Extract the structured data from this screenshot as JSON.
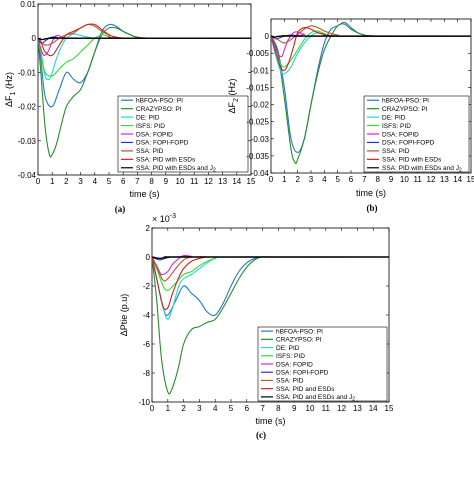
{
  "chart_data": [
    {
      "type": "line",
      "panel": "(a)",
      "caption": "(a)",
      "xlabel": "time (s)",
      "ylabel": "ΔF",
      "ylabel_sub": "1",
      "ylabel_unit": "(Hz)",
      "xlim": [
        0,
        15
      ],
      "ylim": [
        -0.04,
        0.01
      ],
      "xticks": [
        0,
        1,
        2,
        3,
        4,
        5,
        6,
        7,
        8,
        9,
        10,
        11,
        12,
        13,
        14,
        15
      ],
      "yticks": [
        0.01,
        0,
        -0.01,
        -0.02,
        -0.03,
        -0.04
      ],
      "ytick_labels": [
        "0.01",
        "0",
        "-0.01",
        "-0.02",
        "-0.03",
        "-0.04"
      ],
      "legend": [
        "hBFOA-PSO: PI",
        "CRAZYPSO: PI",
        "DE: PID",
        "ISFS: PID",
        "DSA: FOPID",
        "DSA: FOPI-FOPD",
        "SSA: PID",
        "SSA: PID with ESDs",
        "SSA: PID with ESDs and J2"
      ],
      "series": [
        {
          "color": "#1f77d4",
          "x": [
            0,
            0.2,
            0.5,
            1,
            1.5,
            2,
            2.5,
            3,
            3.5,
            4,
            4.5,
            5,
            5.5,
            6,
            6.5,
            7,
            8,
            9,
            15
          ],
          "y": [
            0,
            -0.006,
            -0.017,
            -0.02,
            -0.015,
            -0.01,
            -0.012,
            -0.013,
            -0.01,
            -0.004,
            0.002,
            0.004,
            0.0035,
            0.002,
            0.001,
            0.0003,
            0,
            0,
            0
          ]
        },
        {
          "color": "#2a8a2a",
          "x": [
            0,
            0.2,
            0.5,
            0.8,
            1,
            1.3,
            1.6,
            2,
            2.5,
            3,
            3.5,
            4,
            4.5,
            5,
            5.5,
            6,
            6.5,
            7,
            8,
            15
          ],
          "y": [
            0,
            -0.01,
            -0.026,
            -0.034,
            -0.034,
            -0.031,
            -0.026,
            -0.02,
            -0.017,
            -0.015,
            -0.01,
            -0.004,
            0.001,
            0.003,
            0.003,
            0.002,
            0.001,
            0.0003,
            0,
            0
          ]
        },
        {
          "color": "#25d7d7",
          "x": [
            0,
            0.2,
            0.5,
            0.8,
            1,
            1.3,
            1.7,
            2,
            2.5,
            3,
            3.5,
            4,
            5,
            15
          ],
          "y": [
            0,
            -0.004,
            -0.011,
            -0.012,
            -0.01,
            -0.006,
            -0.002,
            0,
            0.0012,
            0.0008,
            0.0003,
            0,
            0,
            0
          ]
        },
        {
          "color": "#33dd33",
          "x": [
            0,
            0.2,
            0.5,
            1,
            1.5,
            2,
            2.5,
            3,
            3.5,
            4,
            4.5,
            5,
            6,
            15
          ],
          "y": [
            0,
            -0.004,
            -0.01,
            -0.011,
            -0.009,
            -0.007,
            -0.006,
            -0.004,
            -0.002,
            0,
            0.001,
            0.0005,
            0,
            0
          ]
        },
        {
          "color": "#dd22dd",
          "x": [
            0,
            0.2,
            0.4,
            0.7,
            1,
            1.3,
            1.6,
            2,
            2.5,
            3,
            3.5,
            4,
            15
          ],
          "y": [
            0,
            -0.003,
            -0.005,
            -0.004,
            -0.001,
            0.0008,
            0.0005,
            0,
            0,
            0,
            0,
            0,
            0
          ]
        },
        {
          "color": "#2a2add",
          "x": [
            0,
            0.15,
            0.3,
            0.5,
            0.8,
            1.1,
            1.5,
            2,
            3,
            15
          ],
          "y": [
            0,
            -0.0012,
            -0.0015,
            -0.0008,
            0,
            0.0004,
            0.0001,
            0,
            0,
            0
          ]
        },
        {
          "color": "#b05a2a",
          "x": [
            0,
            0.2,
            0.5,
            1,
            1.5,
            2,
            2.5,
            3,
            3.5,
            4,
            4.5,
            5,
            6,
            15
          ],
          "y": [
            0,
            -0.001,
            -0.002,
            -0.0015,
            0,
            0.001,
            0.0015,
            0.003,
            0.004,
            0.0035,
            0.002,
            0.001,
            0,
            0
          ]
        },
        {
          "color": "#cc2222",
          "x": [
            0,
            0.2,
            0.5,
            1,
            1.5,
            2,
            2.5,
            3,
            3.5,
            4,
            4.5,
            5,
            5.5,
            6,
            7,
            15
          ],
          "y": [
            0,
            -0.001,
            -0.004,
            -0.005,
            -0.002,
            0.001,
            0.002,
            0.003,
            0.004,
            0.004,
            0.0025,
            0.001,
            0.0003,
            0,
            0,
            0
          ]
        },
        {
          "color": "#000000",
          "x": [
            0,
            0.15,
            0.3,
            0.5,
            0.8,
            1.2,
            2,
            15
          ],
          "y": [
            0,
            -0.0003,
            -0.0004,
            -0.0002,
            0,
            0.0001,
            0,
            0
          ]
        }
      ]
    },
    {
      "type": "line",
      "panel": "(b)",
      "caption": "(b)",
      "xlabel": "time (s)",
      "ylabel": "ΔF",
      "ylabel_sub": "2",
      "ylabel_unit": "(Hz)",
      "xlim": [
        0,
        15
      ],
      "ylim": [
        -0.04,
        0.005
      ],
      "xticks": [
        0,
        1,
        2,
        3,
        4,
        5,
        6,
        7,
        8,
        9,
        10,
        11,
        12,
        13,
        14,
        15
      ],
      "yticks": [
        0,
        -0.005,
        -0.01,
        -0.015,
        -0.02,
        -0.025,
        -0.03,
        -0.035,
        -0.04
      ],
      "ytick_labels": [
        "0",
        "-0.005",
        "-0.01",
        "-0.015",
        "-0.02",
        "-0.025",
        "-0.03",
        "-0.035",
        "-0.04"
      ],
      "legend": [
        "hBFOA-PSO: PI",
        "CRAZYPSO: PI",
        "DE: PID",
        "ISFS: PID",
        "DSA: FOPID",
        "DSA: FOPI-FOPD",
        "SSA: PID",
        "SSA: PID with ESDs",
        "SSA: PID with ESDs and J2"
      ],
      "series": [
        {
          "color": "#1f77d4",
          "x": [
            0,
            0.5,
            1,
            1.5,
            2,
            2.5,
            3,
            3.5,
            4,
            4.5,
            5,
            5.5,
            6,
            6.5,
            7,
            8,
            9,
            15
          ],
          "y": [
            0,
            -0.004,
            -0.015,
            -0.03,
            -0.034,
            -0.03,
            -0.02,
            -0.01,
            -0.002,
            0.002,
            0.003,
            0.004,
            0.0025,
            0.001,
            0.0003,
            0,
            0,
            0
          ]
        },
        {
          "color": "#2a8a2a",
          "x": [
            0,
            0.5,
            1,
            1.5,
            1.8,
            2,
            2.5,
            3,
            3.5,
            4,
            4.5,
            5,
            5.5,
            6,
            6.5,
            7,
            8,
            15
          ],
          "y": [
            0,
            -0.005,
            -0.018,
            -0.033,
            -0.037,
            -0.036,
            -0.03,
            -0.02,
            -0.011,
            -0.004,
            0,
            0.003,
            0.0035,
            0.002,
            0.001,
            0.0003,
            0,
            0
          ]
        },
        {
          "color": "#25d7d7",
          "x": [
            0,
            0.3,
            0.7,
            1,
            1.5,
            2,
            2.5,
            3,
            3.5,
            4,
            5,
            15
          ],
          "y": [
            0,
            -0.005,
            -0.01,
            -0.011,
            -0.009,
            -0.005,
            -0.002,
            0,
            0.001,
            0.0005,
            0,
            0
          ]
        },
        {
          "color": "#33dd33",
          "x": [
            0,
            0.3,
            0.7,
            1,
            1.5,
            2,
            2.5,
            3,
            3.5,
            4,
            5,
            15
          ],
          "y": [
            0,
            -0.004,
            -0.008,
            -0.009,
            -0.007,
            -0.004,
            -0.001,
            0.001,
            0.0015,
            0.0008,
            0,
            0
          ]
        },
        {
          "color": "#dd22dd",
          "x": [
            0,
            0.2,
            0.5,
            0.8,
            1,
            1.3,
            1.7,
            2,
            2.5,
            3,
            15
          ],
          "y": [
            0,
            -0.002,
            -0.005,
            -0.006,
            -0.004,
            -0.001,
            0.001,
            0.0012,
            0.0005,
            0,
            0
          ]
        },
        {
          "color": "#2a2add",
          "x": [
            0,
            0.2,
            0.4,
            0.7,
            1,
            1.5,
            2,
            3,
            15
          ],
          "y": [
            0,
            -0.0005,
            -0.0008,
            -0.0004,
            0,
            0.0003,
            0.0001,
            0,
            0
          ]
        },
        {
          "color": "#b05a2a",
          "x": [
            0,
            0.5,
            1,
            1.5,
            2,
            2.5,
            3,
            3.5,
            4,
            4.5,
            5,
            6,
            15
          ],
          "y": [
            0,
            -0.001,
            -0.002,
            -0.001,
            0.0005,
            0.002,
            0.003,
            0.0025,
            0.0015,
            0.0008,
            0.0003,
            0,
            0
          ]
        },
        {
          "color": "#cc2222",
          "x": [
            0,
            0.3,
            0.7,
            1,
            1.3,
            1.7,
            2,
            2.5,
            3,
            3.5,
            4,
            4.5,
            5,
            6,
            15
          ],
          "y": [
            0,
            -0.004,
            -0.009,
            -0.01,
            -0.008,
            -0.003,
            0.001,
            0.0025,
            0.002,
            0.001,
            0.0005,
            0.0002,
            0,
            0,
            0
          ]
        },
        {
          "color": "#000000",
          "x": [
            0,
            0.15,
            0.3,
            0.5,
            0.8,
            1.2,
            2,
            15
          ],
          "y": [
            0,
            -0.0002,
            -0.0003,
            -0.0001,
            0,
            0.0001,
            0,
            0
          ]
        }
      ]
    },
    {
      "type": "line",
      "panel": "(c)",
      "caption": "(c)",
      "xlabel": "time (s)",
      "ylabel": "ΔPtie (p.u)",
      "exponent_label": "× 10",
      "exponent_power": "-3",
      "xlim": [
        0,
        15
      ],
      "ylim": [
        -10,
        2
      ],
      "xticks": [
        0,
        1,
        2,
        3,
        4,
        5,
        6,
        7,
        8,
        9,
        10,
        11,
        12,
        13,
        14,
        15
      ],
      "yticks": [
        2,
        0,
        -2,
        -4,
        -6,
        -8,
        -10
      ],
      "ytick_labels": [
        "2",
        "0",
        "-2",
        "-4",
        "-6",
        "-8",
        "-10"
      ],
      "legend": [
        "hBFOA-PSO: PI",
        "CRAZYPSO: PI",
        "DE: PID",
        "ISFS: PID",
        "DSA: FOPID",
        "DSA: FOPI-FOPD",
        "SSA: PID",
        "SSA: PID and ESDs",
        "SSA: PID and ESDs and J2"
      ],
      "series": [
        {
          "color": "#1f77d4",
          "x": [
            0,
            0.3,
            0.7,
            1,
            1.5,
            2,
            2.5,
            3,
            3.5,
            4,
            4.5,
            5,
            5.5,
            6,
            6.5,
            7,
            8,
            15
          ],
          "y": [
            0,
            -1.5,
            -3.5,
            -4,
            -3,
            -2,
            -2.5,
            -3,
            -3.8,
            -4,
            -3.2,
            -2,
            -1,
            -0.4,
            -0.1,
            0,
            0,
            0
          ]
        },
        {
          "color": "#2a8a2a",
          "x": [
            0,
            0.3,
            0.6,
            1,
            1.3,
            1.7,
            2,
            2.5,
            3,
            3.5,
            4,
            4.5,
            5,
            5.5,
            6,
            6.5,
            7,
            8,
            15
          ],
          "y": [
            0,
            -3,
            -7,
            -9.3,
            -9,
            -7.5,
            -6,
            -5,
            -4.8,
            -4.5,
            -4.3,
            -3.5,
            -2.5,
            -1.5,
            -0.7,
            -0.2,
            0,
            0,
            0
          ]
        },
        {
          "color": "#25d7d7",
          "x": [
            0,
            0.3,
            0.7,
            1,
            1.3,
            1.7,
            2,
            2.5,
            3,
            3.5,
            4,
            5,
            15
          ],
          "y": [
            0,
            -1.5,
            -3.5,
            -4.3,
            -3.5,
            -2,
            -1.5,
            -1.2,
            -0.8,
            -0.4,
            -0.1,
            0,
            0
          ]
        },
        {
          "color": "#33dd33",
          "x": [
            0,
            0.3,
            0.7,
            1,
            1.5,
            2,
            2.5,
            3,
            3.5,
            4,
            5,
            15
          ],
          "y": [
            0,
            -0.8,
            -2,
            -2.3,
            -1.8,
            -1.2,
            -1,
            -0.6,
            -0.3,
            -0.1,
            0,
            0
          ]
        },
        {
          "color": "#dd22dd",
          "x": [
            0,
            0.3,
            0.6,
            1,
            1.3,
            1.7,
            2,
            2.5,
            3,
            15
          ],
          "y": [
            0,
            -0.6,
            -1.2,
            -1,
            -0.5,
            -0.1,
            0.1,
            0.05,
            0,
            0
          ]
        },
        {
          "color": "#2a2add",
          "x": [
            0,
            0.2,
            0.5,
            0.8,
            1.2,
            2,
            3,
            15
          ],
          "y": [
            0,
            -0.1,
            -0.2,
            -0.1,
            0,
            0,
            0,
            0
          ]
        },
        {
          "color": "#b05a2a",
          "x": [
            0,
            0.3,
            0.7,
            1,
            1.5,
            2,
            2.5,
            3,
            15
          ],
          "y": [
            0,
            -0.7,
            -1.6,
            -1.5,
            -0.8,
            -0.2,
            0,
            0,
            0
          ]
        },
        {
          "color": "#cc2222",
          "x": [
            0,
            0.3,
            0.7,
            1,
            1.3,
            1.7,
            2,
            2.5,
            3,
            3.5,
            4,
            15
          ],
          "y": [
            0,
            -1.5,
            -3.4,
            -3.5,
            -2.5,
            -1.4,
            -0.8,
            -0.3,
            -0.1,
            0,
            0,
            0
          ]
        },
        {
          "color": "#000000",
          "x": [
            0,
            0.2,
            0.5,
            0.8,
            1.2,
            2,
            15
          ],
          "y": [
            0,
            -0.05,
            -0.1,
            -0.05,
            0,
            0,
            0
          ]
        }
      ]
    }
  ]
}
